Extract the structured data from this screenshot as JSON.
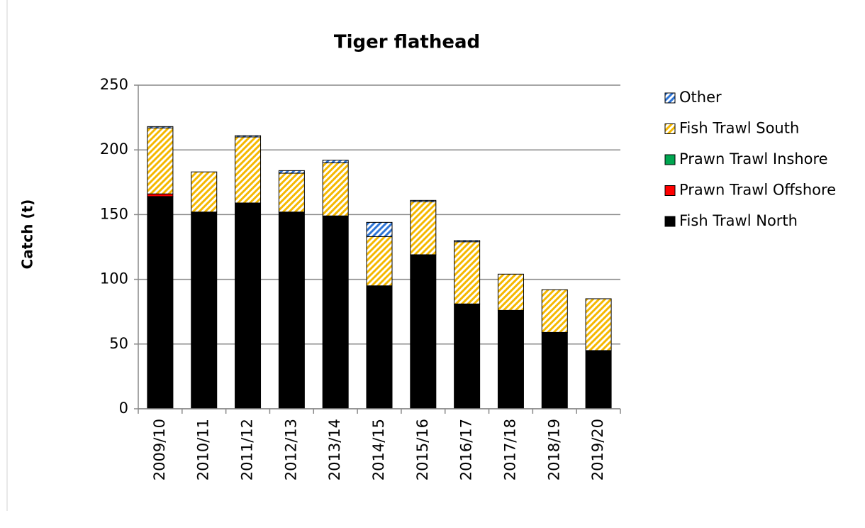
{
  "chart_data": {
    "type": "stacked_bar",
    "title": "Tiger flathead",
    "y_label": "Catch (t)",
    "categories": [
      "2009/10",
      "2010/11",
      "2011/12",
      "2012/13",
      "2013/14",
      "2014/15",
      "2015/16",
      "2016/17",
      "2017/18",
      "2018/19",
      "2019/20"
    ],
    "series": [
      {
        "name": "Fish Trawl North",
        "color": "#000000",
        "values": [
          164,
          152,
          159,
          152,
          149,
          95,
          119,
          81,
          76,
          59,
          45
        ]
      },
      {
        "name": "Prawn Trawl Offshore",
        "color": "#ff0000",
        "values": [
          2,
          0,
          0,
          0,
          0,
          0,
          0,
          0,
          0,
          0,
          0
        ]
      },
      {
        "name": "Prawn Trawl Inshore",
        "color": "#00a650",
        "values": [
          0,
          0,
          0,
          0,
          0,
          0,
          0,
          0,
          0,
          0,
          0
        ]
      },
      {
        "name": "Fish Trawl South",
        "color": "#f5b800",
        "hatch": true,
        "values": [
          51,
          31,
          51,
          30,
          41,
          38,
          41,
          48,
          28,
          33,
          40
        ]
      },
      {
        "name": "Other",
        "color": "#2e75d6",
        "hatch": true,
        "values": [
          1,
          0,
          1,
          2,
          2,
          11,
          1,
          1,
          0,
          0,
          0
        ]
      }
    ],
    "ylim": [
      0,
      250
    ],
    "yticks": [
      0,
      50,
      100,
      150,
      200,
      250
    ],
    "grid": true,
    "legend": "right"
  }
}
